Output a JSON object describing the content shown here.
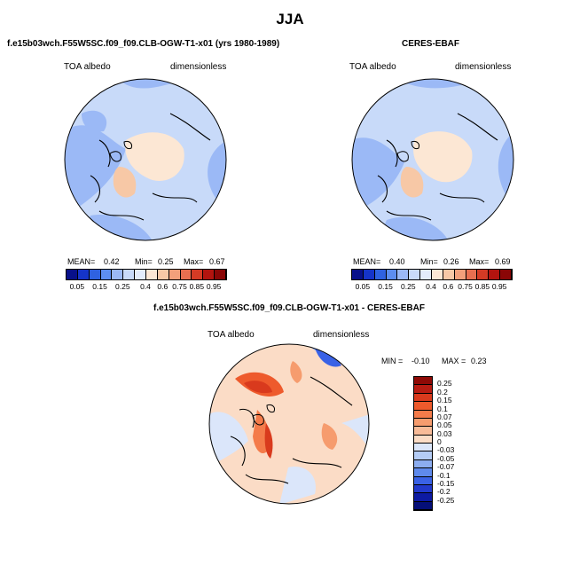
{
  "title": "JJA",
  "panel_left": {
    "title": "f.e15b03wch.F55W5SC.f09_f09.CLB-OGW-T1-x01 (yrs 1980-1989)",
    "variable": "TOA albedo",
    "units": "dimensionless",
    "stats": {
      "mean_label": "MEAN=",
      "mean": "0.42",
      "min_label": "Min=",
      "min": "0.25",
      "max_label": "Max=",
      "max": "0.67"
    }
  },
  "panel_right": {
    "title": "CERES-EBAF",
    "variable": "TOA albedo",
    "units": "dimensionless",
    "stats": {
      "mean_label": "MEAN=",
      "mean": "0.40",
      "min_label": "Min=",
      "min": "0.26",
      "max_label": "Max=",
      "max": "0.69"
    }
  },
  "panel_diff": {
    "title": "f.e15b03wch.F55W5SC.f09_f09.CLB-OGW-T1-x01 - CERES-EBAF",
    "variable": "TOA albedo",
    "units": "dimensionless",
    "minmax": {
      "min_label": "MIN =",
      "min": "-0.10",
      "max_label": "MAX =",
      "max": "0.23"
    }
  },
  "abs_colorbar": {
    "labels": [
      "0.05",
      "0.15",
      "0.25",
      "0.4",
      "0.6",
      "0.75",
      "0.85",
      "0.95"
    ],
    "colors": [
      "#08108a",
      "#1534c8",
      "#2f62e0",
      "#5d8ef0",
      "#9bb9f6",
      "#c8daf9",
      "#e3ecfb",
      "#fce7d4",
      "#f7c8a6",
      "#f2a07b",
      "#e86f50",
      "#d43b25",
      "#b3140f",
      "#8a0606"
    ]
  },
  "diff_colorbar": {
    "labels": [
      "0.25",
      "0.2",
      "0.15",
      "0.1",
      "0.07",
      "0.05",
      "0.03",
      "0",
      "-0.03",
      "-0.05",
      "-0.07",
      "-0.1",
      "-0.15",
      "-0.2",
      "-0.25"
    ],
    "colors": [
      "#8f0a06",
      "#b81c12",
      "#d93a1d",
      "#ee5a2c",
      "#f47b4a",
      "#f69c6e",
      "#f8bb98",
      "#fbdcc6",
      "#dbe6fa",
      "#b4ccf5",
      "#8cadf0",
      "#5f8aec",
      "#3a62e6",
      "#2239cc",
      "#0d1aa3",
      "#050f78"
    ]
  }
}
